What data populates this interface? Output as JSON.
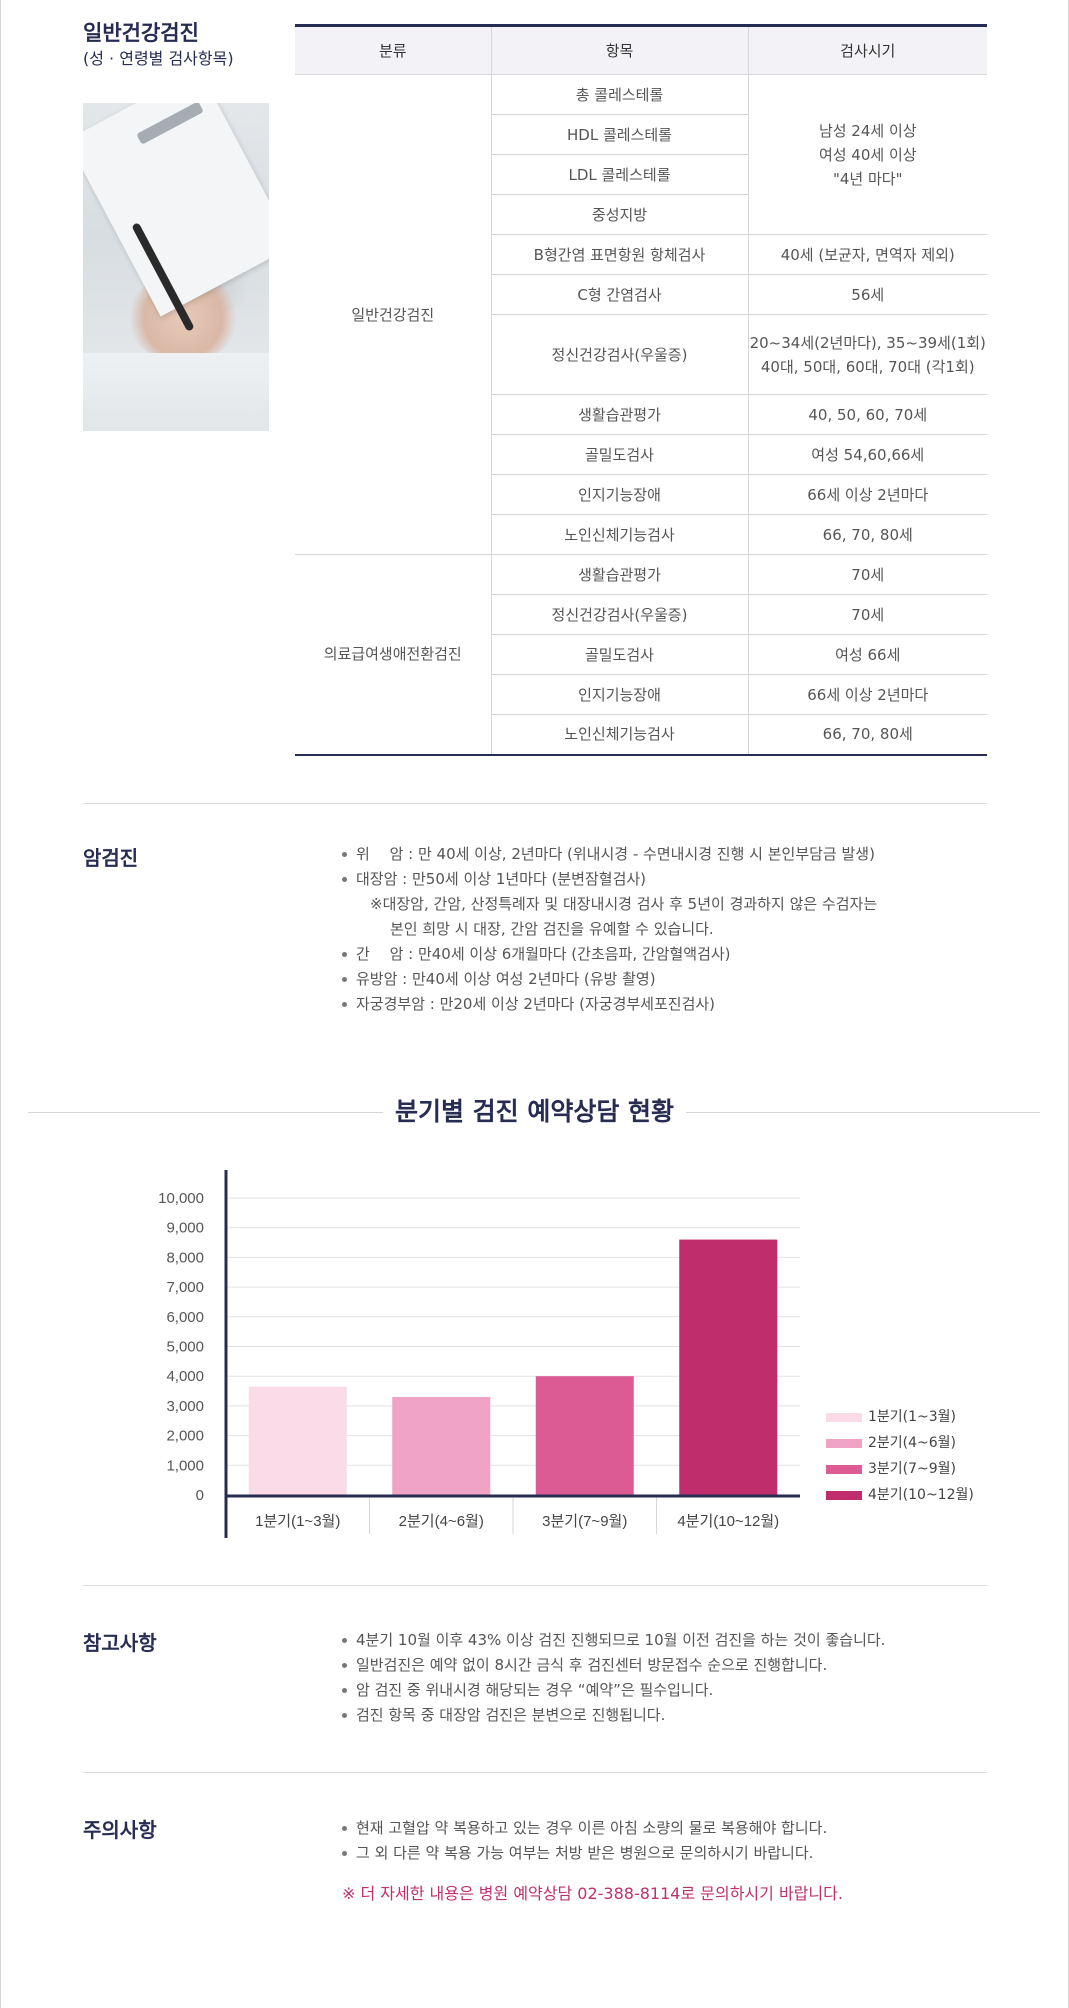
{
  "section1": {
    "title": "일반건강검진",
    "subtitle": "(성 · 연령별 검사항목)",
    "table": {
      "headers": [
        "분류",
        "항목",
        "검사시기"
      ],
      "group1": {
        "category": "일반건강검진",
        "items": [
          "총 콜레스테롤",
          "HDL 콜레스테롤",
          "LDL 콜레스테롤",
          "중성지방",
          "B형간염 표면항원 항체검사",
          "C형 간염검사",
          "정신건강검사(우울증)",
          "생활습관평가",
          "골밀도검사",
          "인지기능장애",
          "노인신체기능검사"
        ],
        "lipid_timing": [
          "남성 24세 이상",
          "여성 40세 이상",
          "\"4년 마다\""
        ],
        "timings": [
          "40세 (보균자, 면역자 제외)",
          "56세",
          "20~34세(2년마다), 35~39세(1회)",
          "40대, 50대, 60대, 70대 (각1회)",
          "40, 50, 60, 70세",
          "여성 54,60,66세",
          "66세 이상 2년마다",
          "66, 70, 80세"
        ]
      },
      "group2": {
        "category": "의료급여생애전환검진",
        "items": [
          "생활습관평가",
          "정신건강검사(우울증)",
          "골밀도검사",
          "인지기능장애",
          "노인신체기능검사"
        ],
        "timings": [
          "70세",
          "70세",
          "여성 66세",
          "66세 이상 2년마다",
          "66, 70, 80세"
        ]
      }
    }
  },
  "cancer": {
    "heading": "암검진",
    "items": [
      "위 　암 : 만 40세 이상, 2년마다 (위내시경 - 수면내시경 진행 시 본인부담금 발생)",
      "대장암 : 만50세 이상 1년마다 (분변잠혈검사)",
      "※대장암, 간암, 산정특례자 및 대장내시경 검사 후 5년이 경과하지 않은 수검자는",
      "본인 희망 시 대장, 간암 검진을 유예할 수 있습니다.",
      "간 　암 : 만40세 이상 6개월마다 (간초음파, 간암혈액검사)",
      "유방암 : 만40세 이상 여성 2년마다 (유방 촬영)",
      "자궁경부암 : 만20세 이상 2년마다 (자궁경부세포진검사)"
    ]
  },
  "chart_title": "분기별 검진 예약상담 현황",
  "chart_data": {
    "type": "bar",
    "categories": [
      "1분기(1~3월)",
      "2분기(4~6월)",
      "3분기(7~9월)",
      "4분기(10~12월)"
    ],
    "values": [
      3650,
      3300,
      4000,
      8600
    ],
    "colors": [
      "#fbdbe8",
      "#f1a3c6",
      "#dd5b95",
      "#bf2d6c"
    ],
    "legend": [
      "1분기(1~3월)",
      "2분기(4~6월)",
      "3분기(7~9월)",
      "4분기(10~12월)"
    ],
    "legend_position": "right",
    "yticks": [
      "0",
      "1,000",
      "2,000",
      "3,000",
      "4,000",
      "5,000",
      "6,000",
      "7,000",
      "8,000",
      "9,000",
      "10,000"
    ],
    "ylim": [
      0,
      10000
    ],
    "grid": true
  },
  "reference": {
    "heading": "참고사항",
    "items": [
      "4분기 10월 이후 43% 이상 검진 진행되므로 10월 이전 검진을 하는 것이 좋습니다.",
      "일반검진은 예약 없이 8시간 금식 후 검진센터 방문접수 순으로 진행합니다.",
      "암 검진 중 위내시경 해당되는 경우 “예약”은 필수입니다.",
      "검진 항목 중 대장암 검진은 분변으로 진행됩니다."
    ]
  },
  "caution": {
    "heading": "주의사항",
    "items": [
      "현재 고혈압 약 복용하고 있는 경우 이른 아침 소량의 물로 복용해야 합니다.",
      "그 외 다른 약 복용 가능 여부는 처방 받은 병원으로 문의하시기 바랍니다."
    ],
    "contact": "※ 더 자세한 내용은 병원 예약상담 02-388-8114로 문의하시기 바랍니다."
  }
}
